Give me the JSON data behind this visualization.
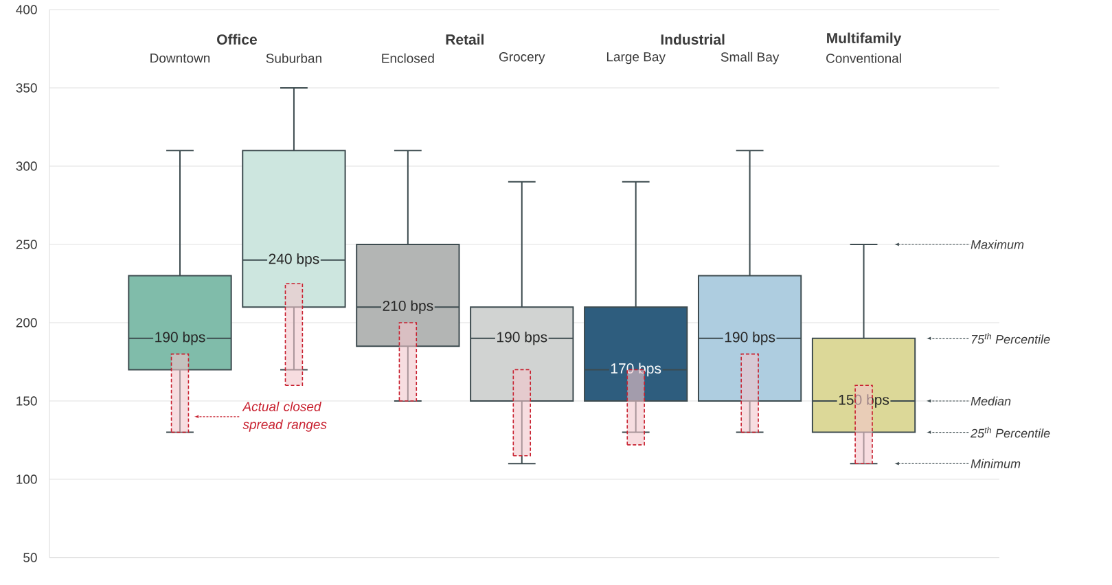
{
  "chart_data": {
    "type": "box",
    "categories": [
      "Downtown",
      "Suburban",
      "Enclosed",
      "Grocery",
      "Large Bay",
      "Small Bay",
      "Conventional"
    ],
    "series": [
      {
        "type": "box",
        "colors": [
          "#80bcaa",
          "#cde6df",
          "#b3b5b4",
          "#d1d3d2",
          "#2e5d7e",
          "#aecde0",
          "#dcd898"
        ],
        "boxes": [
          {
            "low": 130,
            "q1": 170,
            "median": 190,
            "q3": 230,
            "high": 310
          },
          {
            "low": 170,
            "q1": 210,
            "median": 240,
            "q3": 310,
            "high": 350
          },
          {
            "low": 150,
            "q1": 185,
            "median": 210,
            "q3": 250,
            "high": 310
          },
          {
            "low": 110,
            "q1": 150,
            "median": 190,
            "q3": 210,
            "high": 290
          },
          {
            "low": 130,
            "q1": 150,
            "median": 170,
            "q3": 210,
            "high": 290
          },
          {
            "low": 130,
            "q1": 150,
            "median": 190,
            "q3": 230,
            "high": 310
          },
          {
            "low": 110,
            "q1": 130,
            "median": 150,
            "q3": 190,
            "high": 250
          }
        ]
      },
      {
        "type": "bar",
        "name": "Actual closed spread ranges",
        "color": "#c8202f",
        "line_style": "dashed",
        "base": [
          130,
          160,
          150,
          115,
          122,
          130,
          110
        ],
        "values": [
          50,
          65,
          50,
          55,
          48,
          50,
          50
        ]
      }
    ],
    "ylim": [
      50,
      400
    ],
    "yticks": [
      50,
      100,
      150,
      200,
      250,
      300,
      350,
      400
    ],
    "grid": "y",
    "annotations": [
      "**Office**",
      "**Retail**",
      "**Industrial**",
      "**Multifamily**",
      {
        "text": "190 bps",
        "x": "Downtown",
        "y": 190
      },
      {
        "text": "240 bps",
        "x": "Suburban",
        "y": 240
      },
      {
        "text": "210 bps",
        "x": "Enclosed",
        "y": 210
      },
      {
        "text": "190 bps",
        "x": "Grocery",
        "y": 190
      },
      {
        "text": "170 bps",
        "x": "Large Bay",
        "y": 170
      },
      {
        "text": "190 bps",
        "x": "Small Bay",
        "y": 190
      },
      {
        "text": "150 bps",
        "x": "Conventional",
        "y": 150
      },
      "Maximum",
      "75$^{th}$ Percentile",
      "Median",
      "25$^{th}$ Percentile",
      "Minimum"
    ]
  }
}
